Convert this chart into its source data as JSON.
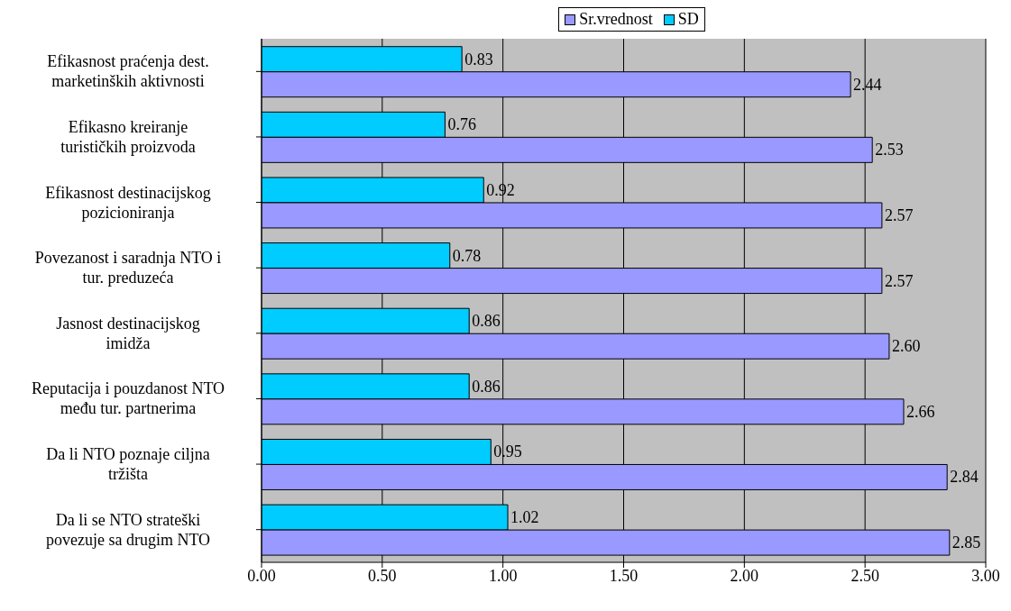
{
  "chart_data": {
    "type": "bar",
    "orientation": "horizontal",
    "categories": [
      "Efikasnost praćenja dest. marketinških aktivnosti",
      "Efikasno kreiranje turističkih proizvoda",
      "Efikasnost destinacijskog pozicioniranja",
      "Povezanost i saradnja NTO i tur. preduzeća",
      "Jasnost destinacijskog imidža",
      "Reputacija i pouzdanost NTO među tur. partnerima",
      "Da li NTO poznaje ciljna tržišta",
      "Da li se NTO strateški povezuje sa drugim NTO"
    ],
    "series": [
      {
        "name": "Sr.vrednost",
        "color": "#9999ff",
        "values": [
          2.44,
          2.53,
          2.57,
          2.57,
          2.6,
          2.66,
          2.84,
          2.85
        ]
      },
      {
        "name": "SD",
        "color": "#00ccff",
        "values": [
          0.83,
          0.76,
          0.92,
          0.78,
          0.86,
          0.86,
          0.95,
          1.02
        ]
      }
    ],
    "xlim": [
      0,
      3
    ],
    "xticks": [
      {
        "value": 0,
        "label": "0.00"
      },
      {
        "value": 0.5,
        "label": "0.50"
      },
      {
        "value": 1,
        "label": "1.00"
      },
      {
        "value": 1.5,
        "label": "1.50"
      },
      {
        "value": 2,
        "label": "2.00"
      },
      {
        "value": 2.5,
        "label": "2.50"
      },
      {
        "value": 3,
        "label": "3.00"
      }
    ],
    "value_labels": [
      [
        "2.44",
        "2.53",
        "2.57",
        "2.57",
        "2.60",
        "2.66",
        "2.84",
        "2.85"
      ],
      [
        "0.83",
        "0.76",
        "0.92",
        "0.78",
        "0.86",
        "0.86",
        "0.95",
        "1.02"
      ]
    ],
    "grid": "x",
    "legend": "top"
  }
}
